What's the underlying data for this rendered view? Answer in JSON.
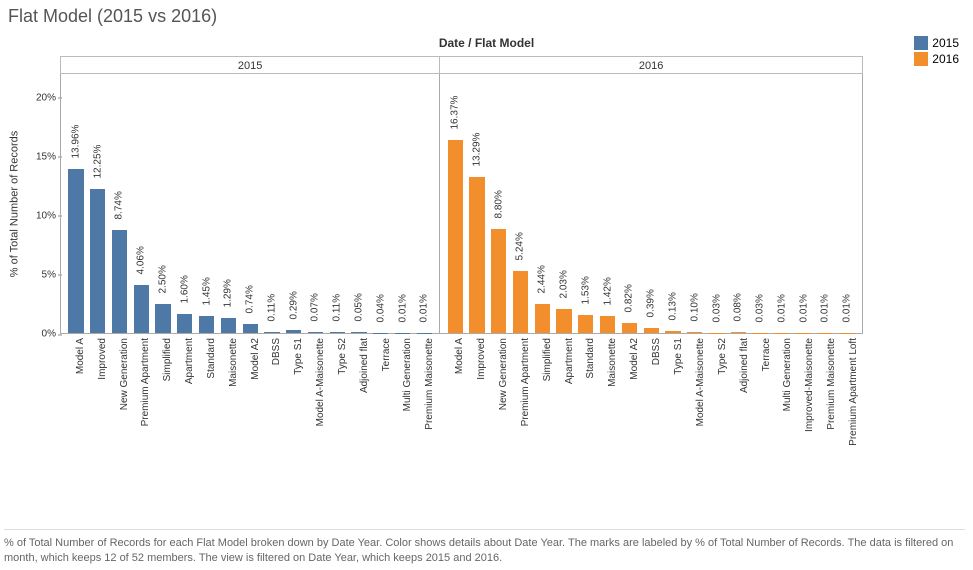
{
  "title": "Flat Model (2015 vs 2016)",
  "axis_super_title": "Date / Flat Model",
  "y_axis_title": "% of Total Number of Records",
  "ylim": [
    0,
    22
  ],
  "yticks": [
    0,
    5,
    10,
    15,
    20
  ],
  "ytick_labels": [
    "0%",
    "5%",
    "10%",
    "15%",
    "20%"
  ],
  "label_fontsize": 10,
  "title_fontsize": 18,
  "background_color": "#ffffff",
  "colors": {
    "2015": "#4e79a7",
    "2016": "#f28e2b"
  },
  "legend": [
    {
      "label": "2015",
      "color": "#4e79a7"
    },
    {
      "label": "2016",
      "color": "#f28e2b"
    }
  ],
  "panels": [
    {
      "year": "2015",
      "color": "#4e79a7",
      "bars": [
        {
          "cat": "Model A",
          "val": 13.96,
          "label": "13.96%"
        },
        {
          "cat": "Improved",
          "val": 12.25,
          "label": "12.25%"
        },
        {
          "cat": "New Generation",
          "val": 8.74,
          "label": "8.74%"
        },
        {
          "cat": "Premium Apartment",
          "val": 4.06,
          "label": "4.06%"
        },
        {
          "cat": "Simplified",
          "val": 2.5,
          "label": "2.50%"
        },
        {
          "cat": "Apartment",
          "val": 1.6,
          "label": "1.60%"
        },
        {
          "cat": "Standard",
          "val": 1.45,
          "label": "1.45%"
        },
        {
          "cat": "Maisonette",
          "val": 1.29,
          "label": "1.29%"
        },
        {
          "cat": "Model A2",
          "val": 0.74,
          "label": "0.74%"
        },
        {
          "cat": "DBSS",
          "val": 0.11,
          "label": "0.11%"
        },
        {
          "cat": "Type S1",
          "val": 0.29,
          "label": "0.29%"
        },
        {
          "cat": "Model A-Maisonette",
          "val": 0.07,
          "label": "0.07%"
        },
        {
          "cat": "Type S2",
          "val": 0.11,
          "label": "0.11%"
        },
        {
          "cat": "Adjoined flat",
          "val": 0.05,
          "label": "0.05%"
        },
        {
          "cat": "Terrace",
          "val": 0.04,
          "label": "0.04%"
        },
        {
          "cat": "Multi Generation",
          "val": 0.01,
          "label": "0.01%"
        },
        {
          "cat": "Premium Maisonette",
          "val": 0.01,
          "label": "0.01%"
        }
      ]
    },
    {
      "year": "2016",
      "color": "#f28e2b",
      "bars": [
        {
          "cat": "Model A",
          "val": 16.37,
          "label": "16.37%"
        },
        {
          "cat": "Improved",
          "val": 13.29,
          "label": "13.29%"
        },
        {
          "cat": "New Generation",
          "val": 8.8,
          "label": "8.80%"
        },
        {
          "cat": "Premium Apartment",
          "val": 5.24,
          "label": "5.24%"
        },
        {
          "cat": "Simplified",
          "val": 2.44,
          "label": "2.44%"
        },
        {
          "cat": "Apartment",
          "val": 2.03,
          "label": "2.03%"
        },
        {
          "cat": "Standard",
          "val": 1.53,
          "label": "1.53%"
        },
        {
          "cat": "Maisonette",
          "val": 1.42,
          "label": "1.42%"
        },
        {
          "cat": "Model A2",
          "val": 0.82,
          "label": "0.82%"
        },
        {
          "cat": "DBSS",
          "val": 0.39,
          "label": "0.39%"
        },
        {
          "cat": "Type S1",
          "val": 0.13,
          "label": "0.13%"
        },
        {
          "cat": "Model A-Maisonette",
          "val": 0.1,
          "label": "0.10%"
        },
        {
          "cat": "Type S2",
          "val": 0.03,
          "label": "0.03%"
        },
        {
          "cat": "Adjoined flat",
          "val": 0.08,
          "label": "0.08%"
        },
        {
          "cat": "Terrace",
          "val": 0.03,
          "label": "0.03%"
        },
        {
          "cat": "Multi Generation",
          "val": 0.01,
          "label": "0.01%"
        },
        {
          "cat": "Improved-Maisonette",
          "val": 0.01,
          "label": "0.01%"
        },
        {
          "cat": "Premium Maisonette",
          "val": 0.01,
          "label": "0.01%"
        },
        {
          "cat": "Premium Apartment Loft",
          "val": 0.01,
          "label": "0.01%"
        }
      ]
    }
  ],
  "caption": "% of Total Number of Records for each Flat Model broken down by Date Year.  Color shows details about Date Year.  The marks are labeled by % of Total Number of Records. The data is filtered on month, which keeps 12 of 52 members. The view is filtered on Date Year, which keeps 2015 and 2016."
}
